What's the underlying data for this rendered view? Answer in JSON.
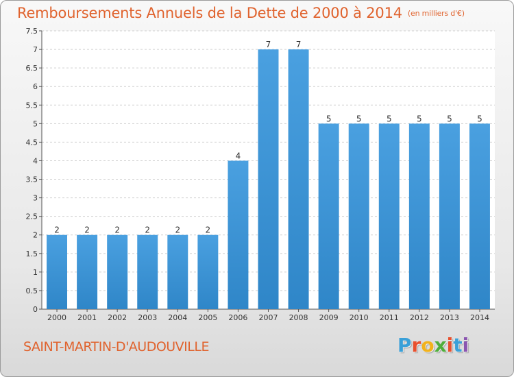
{
  "title": "Remboursements Annuels de la Dette de 2000 à 2014",
  "unit_note": "(en milliers d'€)",
  "commune": "SAINT-MARTIN-D'AUDOUVILLE",
  "logo": {
    "letters": [
      "P",
      "r",
      "o",
      "x",
      "i",
      "t",
      "i"
    ],
    "colors": [
      "#3aa0d8",
      "#e8502e",
      "#f2b21c",
      "#4fae3b",
      "#e8502e",
      "#3aa0d8",
      "#8a55b0"
    ]
  },
  "colors": {
    "bar": "#4aa0e0",
    "bar_dark": "#2f86c8",
    "title": "#e0632e",
    "grid": "#d0d0d0"
  },
  "chart_data": {
    "type": "bar",
    "categories": [
      "2000",
      "2001",
      "2002",
      "2003",
      "2004",
      "2005",
      "2006",
      "2007",
      "2008",
      "2009",
      "2010",
      "2011",
      "2012",
      "2013",
      "2014"
    ],
    "values": [
      2,
      2,
      2,
      2,
      2,
      2,
      4,
      7,
      7,
      5,
      5,
      5,
      5,
      5,
      5
    ],
    "data_labels": [
      "2",
      "2",
      "2",
      "2",
      "2",
      "2",
      "4",
      "7",
      "7",
      "5",
      "5",
      "5",
      "5",
      "5",
      "5"
    ],
    "title": "Remboursements Annuels de la Dette de 2000 à 2014",
    "xlabel": "",
    "ylabel": "",
    "ylim": [
      0,
      7.5
    ],
    "yticks": [
      "0",
      "0.5",
      "1",
      "1.5",
      "2",
      "2.5",
      "3",
      "3.5",
      "4",
      "4.5",
      "5",
      "5.5",
      "6",
      "6.5",
      "7",
      "7.5"
    ],
    "grid": true,
    "legend": "none"
  }
}
